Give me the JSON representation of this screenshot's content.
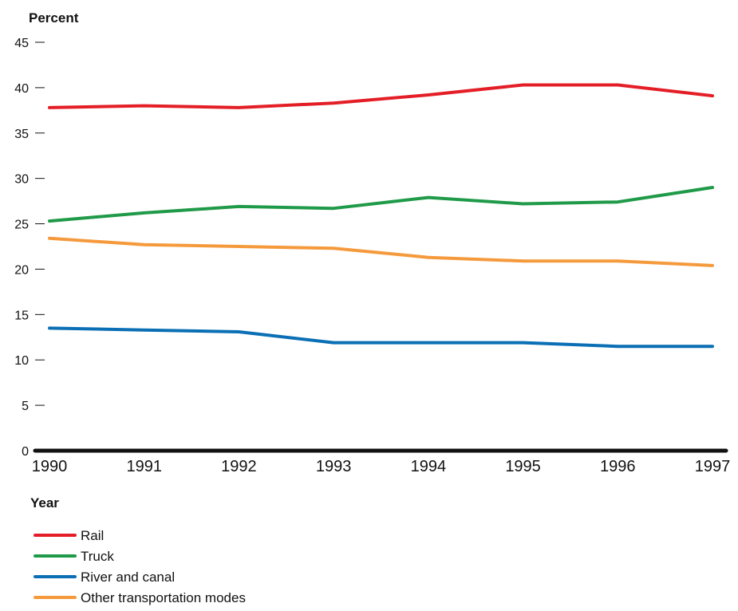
{
  "chart_data": {
    "type": "line",
    "ylabel": "Percent",
    "xlabel": "Year",
    "x": [
      "1990",
      "1991",
      "1992",
      "1993",
      "1994",
      "1995",
      "1996",
      "1997"
    ],
    "ylim": [
      0,
      45
    ],
    "yticks": [
      "0",
      "5",
      "10",
      "15",
      "20",
      "25",
      "30",
      "35",
      "40",
      "45"
    ],
    "grid": false,
    "legend_position": "bottom-left",
    "series": [
      {
        "name": "Rail",
        "color": "#e41e26",
        "values": [
          37.8,
          38.0,
          37.8,
          38.3,
          39.2,
          40.3,
          40.3,
          39.1
        ]
      },
      {
        "name": "Truck",
        "color": "#1f9a48",
        "values": [
          25.3,
          26.2,
          26.9,
          26.7,
          27.9,
          27.2,
          27.4,
          29.0
        ]
      },
      {
        "name": "River and canal",
        "color": "#0a6fb4",
        "values": [
          13.5,
          13.3,
          13.1,
          11.9,
          11.9,
          11.9,
          11.5,
          11.5
        ]
      },
      {
        "name": "Other transportation modes",
        "color": "#f59a3c",
        "values": [
          23.4,
          22.7,
          22.5,
          22.3,
          21.3,
          20.9,
          20.9,
          20.4
        ]
      }
    ]
  }
}
